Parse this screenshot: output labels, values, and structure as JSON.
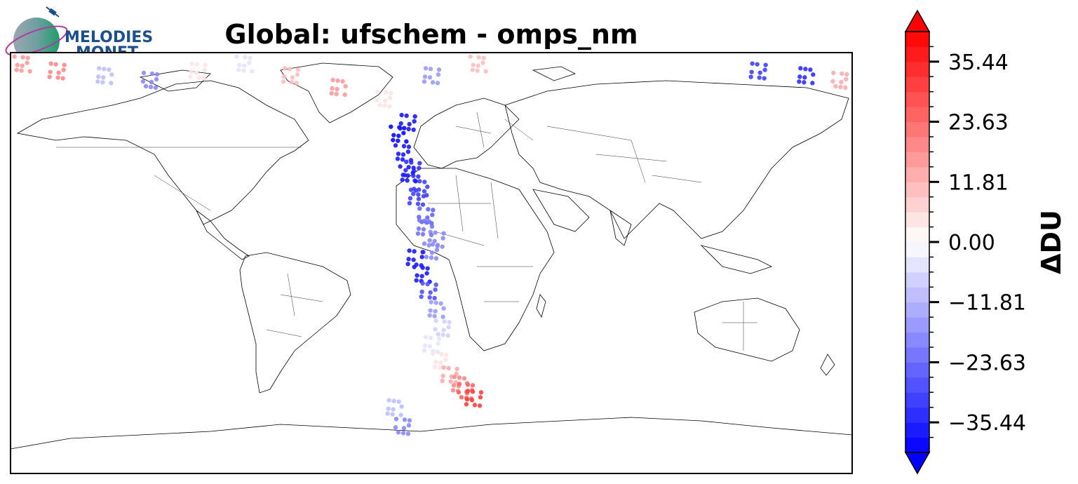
{
  "figure": {
    "title": "Global: ufschem - omps_nm",
    "logo": {
      "line1": "MELODIES",
      "line2": "MONET",
      "colors": {
        "text": "#1d4f8c",
        "globe_left": "#9aa7b3",
        "globe_right": "#1e9e6a",
        "ring": "#b33aa0"
      }
    }
  },
  "map": {
    "projection": "PlateCarree",
    "extent": {
      "lon": [
        -180,
        180
      ],
      "lat": [
        -90,
        90
      ]
    },
    "features": [
      "coastlines",
      "country-borders"
    ],
    "background": "#ffffff"
  },
  "colorbar": {
    "label": "ΔDU",
    "cmap": "bwr",
    "extend": "both",
    "vmin": -41.35,
    "vmax": 41.35,
    "n_levels": 28,
    "ticks": [
      35.44,
      23.63,
      11.81,
      0.0,
      -11.81,
      -23.63,
      -35.44
    ],
    "tick_labels": [
      "35.44",
      "23.63",
      "11.81",
      "0.00",
      "−11.81",
      "−23.63",
      "−35.44"
    ],
    "colors": {
      "min": "#0000ff",
      "mid": "#ffffff",
      "max": "#ff0000"
    }
  },
  "chart_data": {
    "type": "scatter",
    "title": "Global: ufschem - omps_nm",
    "xlabel": "",
    "ylabel": "",
    "colorbar_label": "ΔDU",
    "xlim": [
      -180,
      180
    ],
    "ylim": [
      -90,
      90
    ],
    "grid": false,
    "description_units": "x = longitude (deg), y = latitude (deg), value = ozone difference (DU)",
    "series": [
      {
        "swath": "central-atlantic-africa",
        "x": [
          -12,
          -8,
          -5,
          -2,
          2,
          -10,
          -6,
          -3,
          0,
          -7,
          -4,
          -1,
          2,
          5,
          0,
          4,
          8,
          12,
          15,
          18,
          -14,
          -10,
          -16,
          -12
        ],
        "y": [
          47,
          40,
          32,
          20,
          10,
          38,
          28,
          15,
          5,
          2,
          -5,
          -12,
          -20,
          -28,
          -35,
          -42,
          -48,
          -52,
          -55,
          -58,
          55,
          60,
          -62,
          -70
        ],
        "value": [
          -38,
          -35,
          -32,
          -25,
          -20,
          -36,
          -30,
          -22,
          -18,
          -38,
          -36,
          -28,
          -15,
          -8,
          -5,
          5,
          12,
          20,
          25,
          30,
          -40,
          -38,
          -10,
          -20
        ]
      },
      {
        "swath": "arctic-greenland",
        "x": [
          -175,
          -160,
          -140,
          -120,
          -100,
          -80,
          -60,
          -40,
          -20,
          0,
          20,
          140,
          160,
          175
        ],
        "y": [
          85,
          82,
          80,
          78,
          82,
          85,
          80,
          75,
          70,
          80,
          85,
          82,
          80,
          78
        ],
        "value": [
          15,
          20,
          -10,
          -20,
          5,
          -5,
          10,
          15,
          5,
          -15,
          10,
          -30,
          -35,
          12
        ]
      }
    ]
  }
}
